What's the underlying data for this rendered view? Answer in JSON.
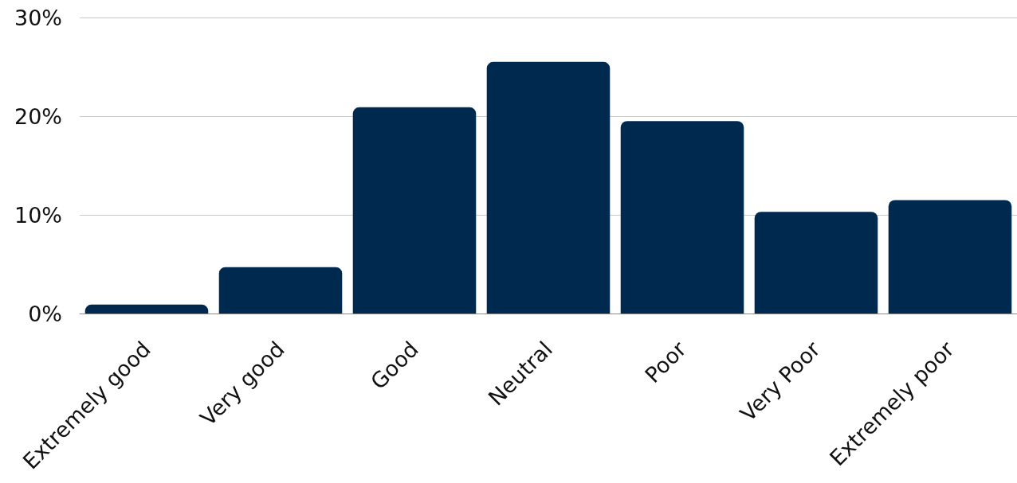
{
  "chart_data": {
    "type": "bar",
    "categories": [
      "Extremely good",
      "Very good",
      "Good",
      "Neutral",
      "Poor",
      "Very Poor",
      "Extremely poor"
    ],
    "values": [
      0.9,
      4.7,
      20.9,
      25.5,
      19.5,
      10.3,
      11.5
    ],
    "color": "#00294f",
    "ylim": [
      0,
      30
    ],
    "yticks": [
      {
        "value": 0,
        "label": "0%"
      },
      {
        "value": 10,
        "label": "10%"
      },
      {
        "value": 20,
        "label": "20%"
      },
      {
        "value": 30,
        "label": "30%"
      }
    ],
    "grid": "y"
  }
}
